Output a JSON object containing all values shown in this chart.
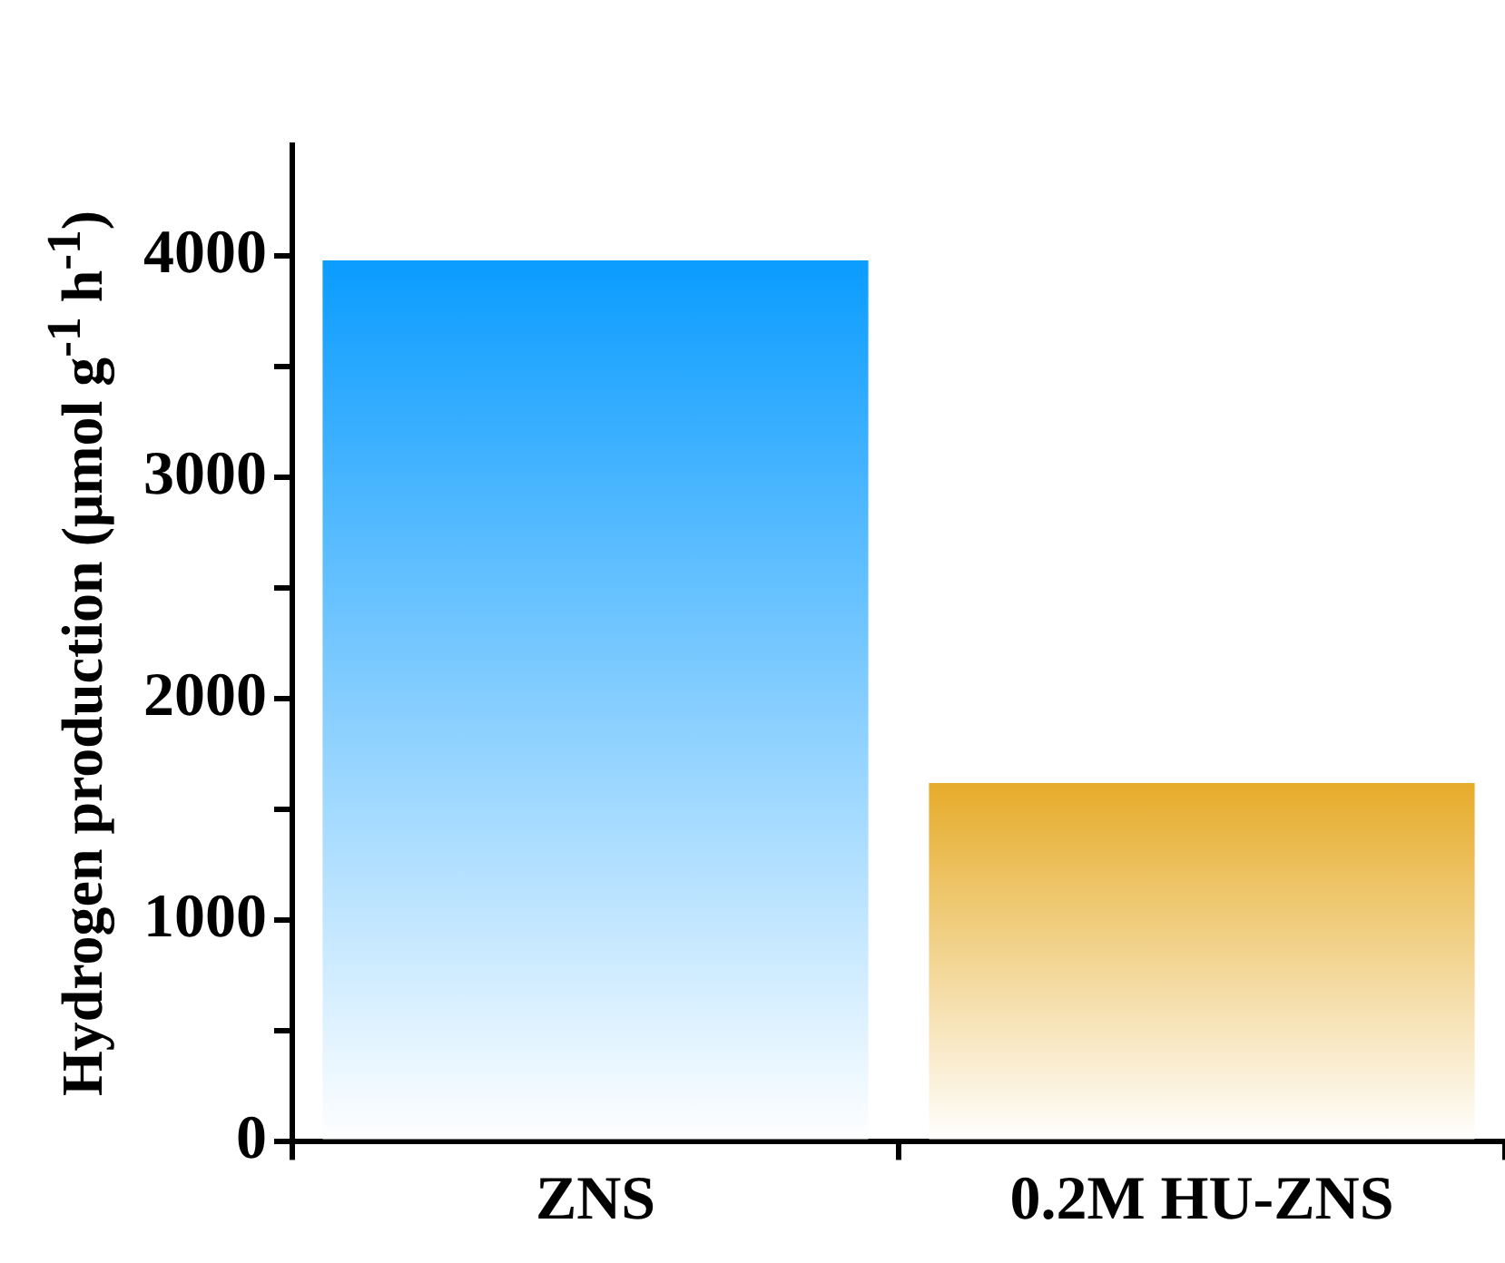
{
  "chart_data": {
    "type": "bar",
    "ylabel": "Hydrogen production (μmol g$^{-1}$ h$^{-1}$)",
    "categories": [
      "ZNS",
      "0.2M HU-ZNS"
    ],
    "values": [
      3980,
      1620
    ],
    "colors": [
      "#0a9cff",
      "#e6ac2a"
    ],
    "ylim": [
      0,
      4500
    ],
    "yticks": [
      0,
      {
        "value": 500,
        "label": null
      },
      1000,
      {
        "value": 1500,
        "label": null
      },
      2000,
      {
        "value": 2500,
        "label": null
      },
      3000,
      {
        "value": 3500,
        "label": null
      },
      4000
    ],
    "grid": false,
    "legend": false
  }
}
